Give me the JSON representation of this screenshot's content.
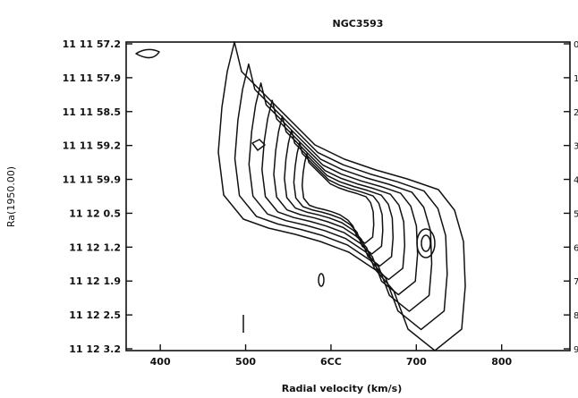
{
  "chart_data": {
    "type": "contour",
    "title": "NGC3593",
    "xlabel": "Radial velocity (km/s)",
    "ylabel": "Ra(1950.00)",
    "xlim": [
      360,
      880
    ],
    "x_ticks": [
      {
        "value": 400,
        "label": "400"
      },
      {
        "value": 500,
        "label": "500"
      },
      {
        "value": 600,
        "label": "6CC"
      },
      {
        "value": 700,
        "label": "700"
      },
      {
        "value": 800,
        "label": "800"
      }
    ],
    "y_ticks_left": [
      "11 11 57.2",
      "11 11 57.9",
      "11 11 58.5",
      "11 11 59.2",
      "11 11 59.9",
      "11 12  0.5",
      "11 12  1.2",
      "11 12  1.9",
      "11 12  2.5",
      "11 12  3.2"
    ],
    "y_ticks_right": [
      "0",
      "1",
      "2",
      "3",
      "4",
      "5",
      "6",
      "7",
      "8",
      "9"
    ],
    "grid": false,
    "legend": "none"
  }
}
